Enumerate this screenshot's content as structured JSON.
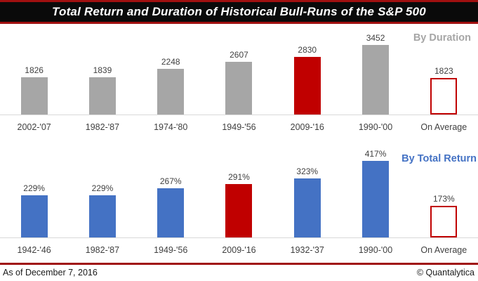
{
  "title_bar": {
    "title": "Total Return and Duration of Historical Bull-Runs of the S&P 500"
  },
  "colors": {
    "gray": "#a6a6a6",
    "red": "#c00000",
    "blue": "#4472c4",
    "outline_border": "#c00000",
    "title_border": "#a01010",
    "axis_line": "#d9d9d9",
    "section_label_duration": "#a6a6a6",
    "section_label_return": "#4472c4"
  },
  "chart_data": [
    {
      "type": "bar",
      "title": "By Duration",
      "section_label": "By Duration",
      "categories": [
        "2002-'07",
        "1982-'87",
        "1974-'80",
        "1949-'56",
        "2009-'16",
        "1990-'00",
        "On Average"
      ],
      "values": [
        1826,
        1839,
        2248,
        2607,
        2830,
        3452,
        1823
      ],
      "value_labels": [
        "1826",
        "1839",
        "2248",
        "2607",
        "2830",
        "3452",
        "1823"
      ],
      "bar_styles": [
        "gray",
        "gray",
        "gray",
        "gray",
        "red",
        "gray",
        "outline"
      ],
      "layout": {
        "grid": false,
        "value_labels": "above",
        "ylim": [
          0,
          3600
        ],
        "legend": "none"
      }
    },
    {
      "type": "bar",
      "title": "By Total Return",
      "section_label": "By Total Return",
      "categories": [
        "1942-'46",
        "1982-'87",
        "1949-'56",
        "2009-'16",
        "1932-'37",
        "1990-'00",
        "On Average"
      ],
      "values": [
        229,
        229,
        267,
        291,
        323,
        417,
        173
      ],
      "value_labels": [
        "229%",
        "229%",
        "267%",
        "291%",
        "323%",
        "417%",
        "173%"
      ],
      "bar_styles": [
        "blue",
        "blue",
        "blue",
        "red",
        "blue",
        "blue",
        "outline"
      ],
      "layout": {
        "grid": false,
        "value_labels": "above",
        "ylim": [
          0,
          450
        ],
        "legend": "none"
      }
    }
  ],
  "footer": {
    "as_of": "As of December 7, 2016",
    "credit": "© Quantalytica"
  }
}
